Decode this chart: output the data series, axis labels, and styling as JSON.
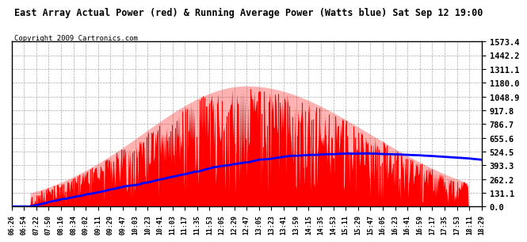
{
  "title": "East Array Actual Power (red) & Running Average Power (Watts blue) Sat Sep 12 19:00",
  "copyright": "Copyright 2009 Cartronics.com",
  "y_max": 1573.4,
  "y_ticks": [
    0.0,
    131.1,
    262.2,
    393.3,
    524.5,
    655.6,
    786.7,
    917.8,
    1048.9,
    1180.0,
    1311.1,
    1442.2,
    1573.4
  ],
  "x_labels": [
    "06:26",
    "06:54",
    "07:22",
    "07:50",
    "08:16",
    "08:34",
    "09:02",
    "09:11",
    "09:29",
    "09:47",
    "10:03",
    "10:23",
    "10:41",
    "11:03",
    "11:17",
    "11:35",
    "11:53",
    "12:05",
    "12:29",
    "12:47",
    "13:05",
    "13:23",
    "13:41",
    "13:59",
    "14:15",
    "14:35",
    "14:53",
    "15:11",
    "15:29",
    "15:47",
    "16:05",
    "16:23",
    "16:41",
    "16:59",
    "17:17",
    "17:35",
    "17:53",
    "18:11",
    "18:29"
  ],
  "bar_color": "#FF0000",
  "avg_color": "#0000FF",
  "bg_color": "#FFFFFF",
  "grid_color": "#AAAAAA"
}
